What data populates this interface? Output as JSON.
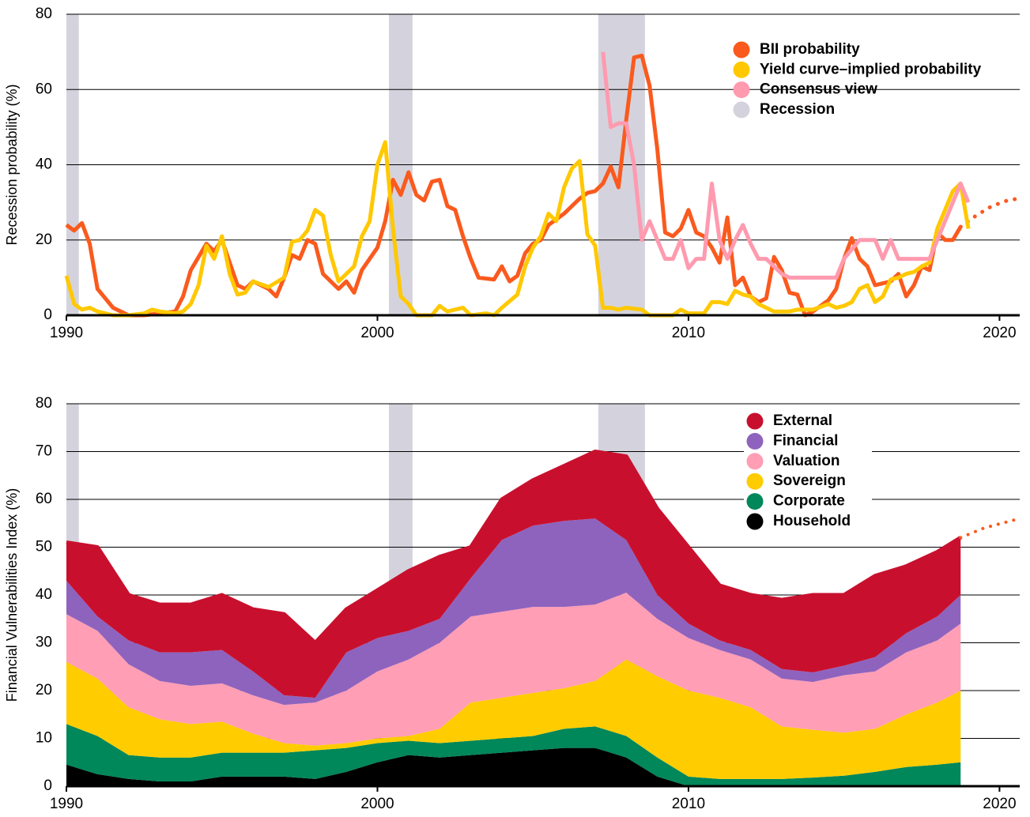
{
  "chart_data": [
    {
      "type": "line",
      "y_label": "Recession probability (%)",
      "xlim": [
        1990,
        2020.65
      ],
      "xticks": [
        1990,
        2000,
        2010,
        2020
      ],
      "ylim": [
        0,
        80
      ],
      "yticks": [
        0,
        20,
        40,
        60,
        80
      ],
      "grid": true,
      "legend": "upper right",
      "recessions": [
        [
          1990,
          1990.4
        ],
        [
          2000.37,
          2001.13
        ],
        [
          2007.1,
          2008.6
        ]
      ],
      "recession_label": "Recession",
      "recession_color": "#d4d3dd",
      "series": [
        {
          "name": "BII probability",
          "color": "#fa5a1e",
          "x": [
            1990,
            1990.25,
            1990.5,
            1990.75,
            1991,
            1991.5,
            1992,
            1992.5,
            1993,
            1993.5,
            1993.75,
            1994,
            1994.5,
            1994.75,
            1995,
            1995.25,
            1995.5,
            1995.75,
            1996,
            1996.5,
            1996.75,
            1997,
            1997.25,
            1997.5,
            1997.75,
            1998,
            1998.25,
            1998.75,
            1999,
            1999.25,
            1999.5,
            2000,
            2000.25,
            2000.5,
            2000.75,
            2001,
            2001.25,
            2001.5,
            2001.75,
            2002,
            2002.25,
            2002.5,
            2002.75,
            2003,
            2003.25,
            2003.75,
            2004,
            2004.25,
            2004.5,
            2004.75,
            2005,
            2005.25,
            2005.5,
            2006,
            2006.5,
            2006.75,
            2007,
            2007.25,
            2007.5,
            2007.75,
            2008,
            2008.25,
            2008.5,
            2008.75,
            2009,
            2009.25,
            2009.5,
            2009.75,
            2010,
            2010.25,
            2010.5,
            2010.75,
            2011,
            2011.25,
            2011.5,
            2011.75,
            2012,
            2012.25,
            2012.5,
            2012.75,
            2013,
            2013.25,
            2013.5,
            2013.75,
            2014,
            2014.5,
            2014.75,
            2015,
            2015.25,
            2015.5,
            2015.75,
            2016,
            2016.5,
            2016.75,
            2017,
            2017.25,
            2017.5,
            2017.75,
            2018,
            2018.25,
            2018.5,
            2018.75
          ],
          "values": [
            24,
            22.5,
            24.5,
            19,
            7,
            2,
            0,
            0,
            0.5,
            1,
            5,
            12,
            19,
            17,
            20,
            14,
            8,
            7,
            9,
            7,
            5,
            10,
            16,
            15,
            20,
            19,
            11,
            7,
            9,
            6,
            12,
            18,
            25,
            36,
            32,
            38,
            32,
            30.5,
            35.5,
            36,
            29,
            28,
            21,
            15,
            10,
            9.5,
            13,
            9,
            10.5,
            16.5,
            19,
            20,
            24,
            27,
            31,
            32.5,
            33,
            35,
            39.5,
            34,
            52,
            68.5,
            69,
            61,
            44,
            22,
            21,
            23,
            28,
            22,
            21,
            18,
            14,
            26,
            8,
            10,
            5,
            3.5,
            4.5,
            15.5,
            12,
            6,
            5.5,
            0,
            1,
            4,
            7,
            15,
            20.5,
            15,
            13,
            8,
            9,
            11,
            5,
            8,
            13,
            12,
            22,
            20,
            20,
            23.5
          ],
          "forecast_x": [
            2018.75,
            2019.25,
            2019.75,
            2020.25,
            2020.6
          ],
          "forecast_values": [
            23.5,
            26.5,
            29,
            30.5,
            31
          ]
        },
        {
          "name": "Yield curve–implied probability",
          "color": "#ffc800",
          "x": [
            1990,
            1990.25,
            1990.5,
            1990.75,
            1991,
            1991.5,
            1992,
            1992.5,
            1992.75,
            1993,
            1993.5,
            1993.75,
            1994,
            1994.25,
            1994.5,
            1994.75,
            1995,
            1995.25,
            1995.5,
            1995.75,
            1996,
            1996.5,
            1997,
            1997.25,
            1997.5,
            1997.75,
            1998,
            1998.25,
            1998.5,
            1998.75,
            1999,
            1999.25,
            1999.5,
            1999.75,
            2000,
            2000.25,
            2000.5,
            2000.75,
            2001,
            2001.25,
            2001.75,
            2002,
            2002.25,
            2002.75,
            2003,
            2003.5,
            2003.75,
            2004,
            2004.5,
            2004.75,
            2005,
            2005.25,
            2005.5,
            2005.75,
            2006,
            2006.25,
            2006.5,
            2006.75,
            2007,
            2007.25,
            2007.5,
            2007.75,
            2008,
            2008.5,
            2008.75,
            2009.5,
            2009.75,
            2010,
            2010.5,
            2010.75,
            2011,
            2011.25,
            2011.5,
            2011.75,
            2012,
            2012.25,
            2012.75,
            2013.25,
            2013.5,
            2014,
            2014.5,
            2014.75,
            2015,
            2015.25,
            2015.5,
            2015.75,
            2016,
            2016.25,
            2016.5,
            2016.75,
            2017,
            2017.25,
            2017.5,
            2017.75,
            2018,
            2018.25,
            2018.5,
            2018.75,
            2019
          ],
          "values": [
            10.5,
            3,
            1.5,
            2,
            1,
            0,
            0,
            0.5,
            1.5,
            1,
            0.5,
            1,
            3,
            8,
            18.5,
            15,
            21,
            11,
            5.5,
            6,
            9,
            7.5,
            10,
            19.5,
            20,
            22.5,
            28,
            26.5,
            16,
            9,
            11,
            13,
            21,
            25,
            40,
            46,
            23,
            5,
            3,
            0,
            0,
            2.5,
            1,
            2,
            0,
            0.5,
            0,
            2,
            5.5,
            13,
            18,
            21,
            27,
            25,
            34,
            39,
            41,
            21.5,
            18.5,
            2,
            2,
            1.5,
            2,
            1.5,
            0,
            0,
            1.5,
            0.5,
            0.5,
            3.5,
            3.5,
            3,
            6.5,
            5.5,
            5,
            3,
            1,
            1,
            1.5,
            1.5,
            3,
            2,
            2.5,
            3.5,
            7,
            8,
            3.5,
            5,
            9.5,
            10,
            11,
            11.5,
            13,
            14,
            23,
            28,
            33,
            35,
            23
          ]
        },
        {
          "name": "Consensus view",
          "color": "#ff9aaf",
          "x": [
            2007.25,
            2007.5,
            2007.75,
            2008,
            2008.25,
            2008.5,
            2008.75,
            2009,
            2009.25,
            2009.5,
            2009.75,
            2010,
            2010.25,
            2010.5,
            2010.75,
            2011,
            2011.25,
            2011.5,
            2011.75,
            2012,
            2012.25,
            2012.5,
            2012.75,
            2013,
            2013.25,
            2014.75,
            2015,
            2015.5,
            2016,
            2016.25,
            2016.5,
            2016.75,
            2017.75,
            2018,
            2018.5,
            2018.75,
            2019
          ],
          "values": [
            70,
            50,
            51,
            51,
            40,
            20,
            25,
            20,
            15,
            15,
            20,
            12.5,
            15,
            15,
            35,
            20,
            15,
            20,
            24,
            19,
            15,
            15,
            13,
            11,
            10,
            10,
            15,
            20,
            20,
            15,
            20,
            15,
            15,
            20,
            30,
            35,
            30
          ]
        }
      ]
    },
    {
      "type": "stacked_area",
      "y_label": "Financial Vulnerabilities Index (%)",
      "xlim": [
        1990,
        2020.65
      ],
      "xticks": [
        1990,
        2000,
        2010,
        2020
      ],
      "ylim": [
        0,
        80
      ],
      "yticks": [
        0,
        10,
        20,
        30,
        40,
        50,
        60,
        70,
        80
      ],
      "grid": true,
      "legend": "upper right",
      "recessions": [
        [
          1990,
          1990.4
        ],
        [
          2000.37,
          2001.13
        ],
        [
          2007.1,
          2008.6
        ]
      ],
      "recession_color": "#d4d3dd",
      "outline_color": "#c8102e",
      "x": [
        1990,
        1991,
        1992,
        1993,
        1994,
        1995,
        1996,
        1997,
        1998,
        1999,
        2000,
        2001,
        2002,
        2003,
        2004,
        2005,
        2006,
        2007,
        2008,
        2009,
        2010,
        2011,
        2012,
        2013,
        2014,
        2015,
        2016,
        2017,
        2018,
        2018.75
      ],
      "forecast_x": [
        2018.75,
        2019.5,
        2020.65
      ],
      "forecast_values": [
        52,
        54,
        56
      ],
      "series": [
        {
          "name": "Household",
          "color": "#000000",
          "values": [
            4.5,
            2.5,
            1.5,
            1,
            1,
            2,
            2,
            2,
            1.5,
            3,
            5,
            6.5,
            6,
            6.5,
            7,
            7.5,
            8,
            8,
            6,
            2,
            0,
            0,
            0,
            0,
            0,
            0,
            0,
            0,
            0,
            0
          ]
        },
        {
          "name": "Corporate",
          "color": "#00875a",
          "values": [
            8.5,
            8,
            5,
            5,
            5,
            5,
            5,
            5,
            6,
            5,
            4,
            3,
            3,
            3,
            3,
            3,
            4,
            4.5,
            4.5,
            4,
            2,
            1.5,
            1.5,
            1.5,
            1.8,
            2.2,
            3,
            4,
            4.5,
            5
          ]
        },
        {
          "name": "Sovereign",
          "color": "#ffcc00",
          "values": [
            13,
            12,
            10,
            8,
            7,
            6.5,
            4,
            2,
            1,
            1,
            1,
            1,
            3,
            8,
            8.5,
            9,
            8.5,
            9.5,
            16,
            17,
            18,
            17,
            15,
            11,
            10,
            9,
            9,
            11,
            13,
            15
          ]
        },
        {
          "name": "Valuation",
          "color": "#ff9eb5",
          "values": [
            10,
            10,
            9,
            8,
            8,
            8,
            8,
            8,
            9,
            11,
            14,
            16,
            18,
            18,
            18,
            18,
            17,
            16,
            14,
            12,
            11,
            10,
            10,
            10,
            10,
            12,
            12,
            13,
            13,
            14
          ]
        },
        {
          "name": "Financial",
          "color": "#8e63be",
          "values": [
            7,
            3,
            5,
            6,
            7,
            7,
            5,
            2,
            1,
            8,
            7,
            6,
            5,
            8,
            15,
            17,
            18,
            18,
            11,
            5,
            3,
            2,
            2,
            2,
            2,
            2,
            3,
            4,
            5,
            6
          ]
        },
        {
          "name": "External",
          "color": "#c8102e",
          "values": [
            8,
            14.5,
            9.5,
            10,
            10,
            11.5,
            13,
            17,
            11.5,
            9,
            10,
            12.5,
            13,
            6.5,
            8.5,
            9.5,
            11.5,
            14,
            17.5,
            18,
            16,
            11.5,
            11.5,
            14.5,
            16.2,
            14.8,
            17,
            14,
            13.5,
            12
          ]
        }
      ]
    }
  ]
}
